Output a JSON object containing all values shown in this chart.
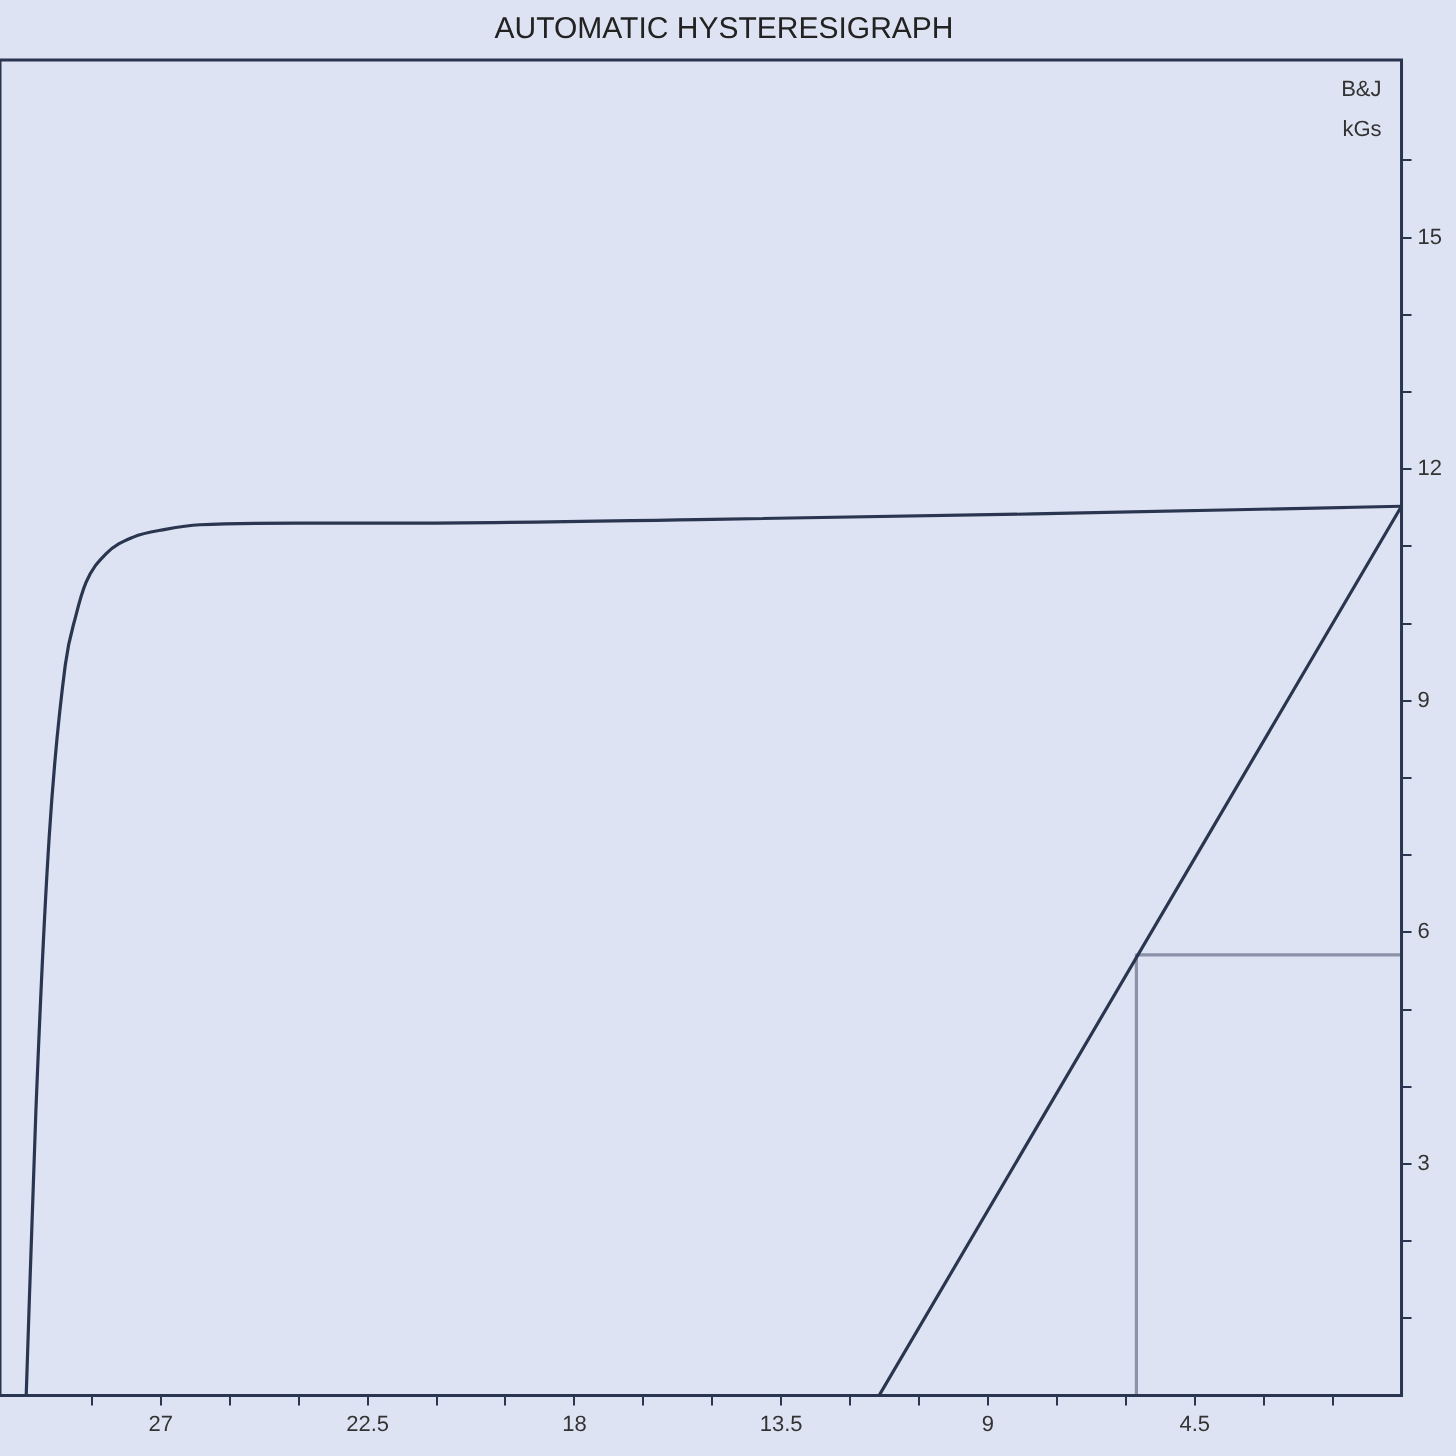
{
  "chart_data": {
    "type": "line",
    "title": "AUTOMATIC HYSTERESIGRAPH",
    "ylabel": "B&J kGs",
    "xlim": [
      30.5,
      0
    ],
    "xticks": [
      {
        "value": 28.5,
        "label": null
      },
      27,
      {
        "value": 25.5,
        "label": null
      },
      {
        "value": 24,
        "label": null
      },
      22.5,
      {
        "value": 21,
        "label": null
      },
      {
        "value": 19.5,
        "label": null
      },
      18,
      {
        "value": 16.5,
        "label": null
      },
      {
        "value": 15,
        "label": null
      },
      13.5,
      {
        "value": 12,
        "label": null
      },
      {
        "value": 10.5,
        "label": null
      },
      9,
      {
        "value": 7.5,
        "label": null
      },
      {
        "value": 6,
        "label": null
      },
      4.5,
      {
        "value": 3,
        "label": null
      },
      {
        "value": 1.5,
        "label": null
      }
    ],
    "ylim": [
      0,
      17.3
    ],
    "yticks": [
      {
        "value": 1,
        "label": null
      },
      {
        "value": 2,
        "label": null
      },
      3,
      {
        "value": 4,
        "label": null
      },
      {
        "value": 5,
        "label": null
      },
      6,
      {
        "value": 7,
        "label": null
      },
      {
        "value": 8,
        "label": null
      },
      9,
      {
        "value": 10,
        "label": null
      },
      {
        "value": 11,
        "label": null
      },
      12,
      {
        "value": 13,
        "label": null
      },
      {
        "value": 14,
        "label": null
      },
      15,
      {
        "value": 16,
        "label": null
      }
    ],
    "grid": false,
    "marker": "none",
    "line_style": "solid",
    "series": [
      {
        "color": "#2a3550",
        "x": [
          29.93,
          29.72,
          29.43,
          29.08,
          28.85,
          28.63,
          28.2,
          27.6,
          26.9,
          26.15,
          24,
          21.8,
          15,
          8,
          0
        ],
        "values": [
          0,
          3.67,
          7.23,
          9.46,
          10.1,
          10.53,
          10.9,
          11.12,
          11.22,
          11.28,
          11.3,
          11.3,
          11.35,
          11.42,
          11.52
        ]
      },
      {
        "color": "#2a3550",
        "x": [
          11.37,
          0
        ],
        "values": [
          0,
          11.52
        ]
      },
      {
        "color": "#8a93a8",
        "x": [
          5.77,
          5.77,
          0
        ],
        "values": [
          0,
          5.71,
          5.71
        ]
      }
    ]
  }
}
